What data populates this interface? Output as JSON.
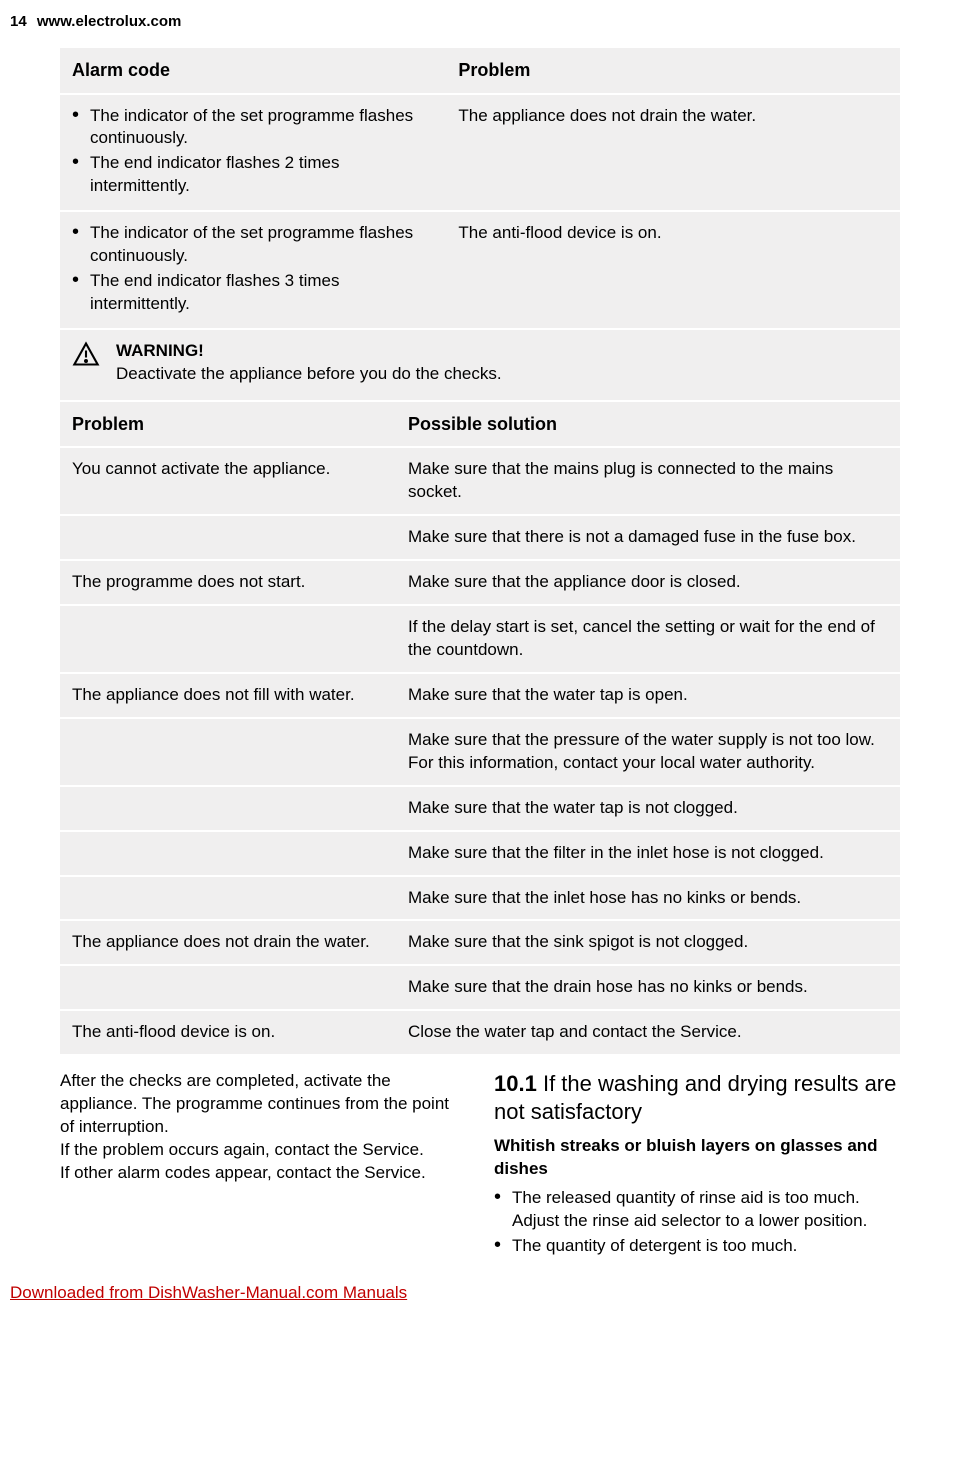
{
  "header": {
    "page_number": "14",
    "site": "www.electrolux.com"
  },
  "table1": {
    "head_left": "Alarm code",
    "head_right": "Problem",
    "rows": [
      {
        "left_items": [
          "The indicator of the set programme flashes continuously.",
          "The end indicator flashes 2 times intermittently."
        ],
        "right": "The appliance does not drain the water."
      },
      {
        "left_items": [
          "The indicator of the set programme flashes continuously.",
          "The end indicator flashes 3 times intermittently."
        ],
        "right": "The anti-flood device is on."
      }
    ]
  },
  "warning": {
    "title": "WARNING!",
    "text": "Deactivate the appliance before you do the checks."
  },
  "table2": {
    "head_left": "Problem",
    "head_right": "Possible solution",
    "rows": [
      {
        "left": "You cannot activate the appliance.",
        "right": "Make sure that the mains plug is connected to the mains socket."
      },
      {
        "left": "",
        "right": "Make sure that there is not a damaged fuse in the fuse box."
      },
      {
        "left": "The programme does not start.",
        "right": "Make sure that the appliance door is closed."
      },
      {
        "left": "",
        "right": "If the delay start is set, cancel the setting or wait for the end of the countdown."
      },
      {
        "left": "The appliance does not fill with water.",
        "right": "Make sure that the water tap is open."
      },
      {
        "left": "",
        "right": "Make sure that the pressure of the water supply is not too low. For this information, contact your local water authority."
      },
      {
        "left": "",
        "right": "Make sure that the water tap is not clogged."
      },
      {
        "left": "",
        "right": "Make sure that the filter in the inlet hose is not clogged."
      },
      {
        "left": "",
        "right": "Make sure that the inlet hose has no kinks or bends."
      },
      {
        "left": "The appliance does not drain the water.",
        "right": "Make sure that the sink spigot is not clogged."
      },
      {
        "left": "",
        "right": "Make sure that the drain hose has no kinks or bends."
      },
      {
        "left": "The anti-flood device is on.",
        "right": "Close the water tap and contact the Service."
      }
    ]
  },
  "after": {
    "p1": "After the checks are completed, activate the appliance. The programme continues from the point of interruption.",
    "p2": "If the problem occurs again, contact the Service.",
    "p3": "If other alarm codes appear, contact the Service."
  },
  "section101": {
    "num": "10.1",
    "title": "If the washing and drying results are not satisfactory",
    "sub": "Whitish streaks or bluish layers on glasses and dishes",
    "bullets": [
      "The released quantity of rinse aid is too much. Adjust the rinse aid selector to a lower position.",
      "The quantity of detergent is too much."
    ]
  },
  "footer": {
    "text": "Downloaded from DishWasher-Manual.com Manuals"
  }
}
